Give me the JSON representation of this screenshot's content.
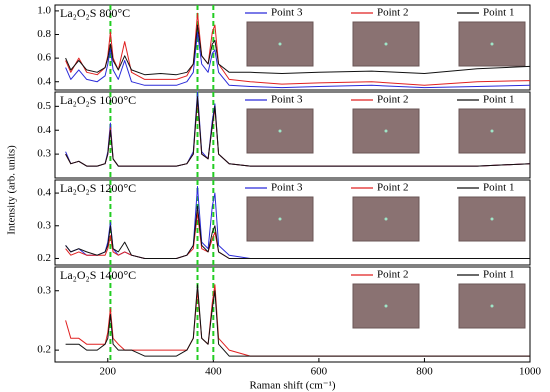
{
  "figure": {
    "y_label": "Intensity (arb. units)",
    "peak_lines": [
      205,
      370,
      400
    ],
    "peak_line_color": "#22cc22"
  },
  "chart_data": [
    {
      "type": "line",
      "label": "La₂O₂S 800°C",
      "xlim": [
        100,
        1000
      ],
      "ylim": [
        0.33,
        1.05
      ],
      "yticks": [
        0.4,
        0.6,
        0.8,
        {
          "value": 1,
          "label": "1.0"
        }
      ],
      "x": [
        120,
        130,
        145,
        160,
        180,
        195,
        200,
        205,
        210,
        220,
        232,
        245,
        270,
        300,
        330,
        350,
        362,
        370,
        378,
        390,
        398,
        403,
        410,
        430,
        470,
        530,
        600,
        700,
        800,
        900,
        1000
      ],
      "series": [
        {
          "name": "Point 3",
          "color": "#2b2bd9",
          "values": [
            0.52,
            0.42,
            0.5,
            0.42,
            0.4,
            0.45,
            0.55,
            0.68,
            0.5,
            0.42,
            0.58,
            0.4,
            0.37,
            0.37,
            0.37,
            0.4,
            0.48,
            0.82,
            0.55,
            0.48,
            0.64,
            0.67,
            0.48,
            0.37,
            0.36,
            0.35,
            0.36,
            0.37,
            0.35,
            0.36,
            0.37
          ]
        },
        {
          "name": "Point 2",
          "color": "#e02020",
          "values": [
            0.58,
            0.48,
            0.6,
            0.48,
            0.46,
            0.52,
            0.62,
            0.82,
            0.6,
            0.5,
            0.74,
            0.48,
            0.42,
            0.42,
            0.42,
            0.45,
            0.55,
            0.98,
            0.62,
            0.55,
            0.82,
            0.88,
            0.55,
            0.42,
            0.4,
            0.38,
            0.39,
            0.4,
            0.37,
            0.4,
            0.41
          ]
        },
        {
          "name": "Point 1",
          "color": "#111111",
          "values": [
            0.6,
            0.5,
            0.58,
            0.5,
            0.48,
            0.52,
            0.6,
            0.72,
            0.58,
            0.5,
            0.62,
            0.5,
            0.46,
            0.47,
            0.46,
            0.48,
            0.55,
            0.88,
            0.62,
            0.55,
            0.72,
            0.75,
            0.55,
            0.48,
            0.48,
            0.47,
            0.48,
            0.49,
            0.47,
            0.51,
            0.53
          ]
        }
      ]
    },
    {
      "type": "line",
      "label": "La₂O₂S 1000°C",
      "xlim": [
        100,
        1000
      ],
      "ylim": [
        0.2,
        0.56
      ],
      "yticks": [
        0.3,
        0.4,
        0.5
      ],
      "x": [
        120,
        130,
        145,
        160,
        180,
        195,
        200,
        205,
        210,
        220,
        232,
        245,
        270,
        300,
        330,
        350,
        362,
        370,
        378,
        390,
        398,
        403,
        410,
        430,
        470,
        530,
        600,
        700,
        800,
        900,
        1000
      ],
      "series": [
        {
          "name": "Point 3",
          "color": "#2b2bd9",
          "values": [
            0.31,
            0.26,
            0.27,
            0.25,
            0.25,
            0.26,
            0.31,
            0.43,
            0.28,
            0.25,
            0.25,
            0.25,
            0.25,
            0.25,
            0.25,
            0.26,
            0.31,
            0.56,
            0.31,
            0.28,
            0.44,
            0.51,
            0.3,
            0.26,
            0.25,
            0.25,
            0.25,
            0.25,
            0.25,
            0.25,
            0.26
          ]
        },
        {
          "name": "Point 2",
          "color": "#e02020",
          "values": [
            0.3,
            0.26,
            0.27,
            0.25,
            0.25,
            0.26,
            0.3,
            0.41,
            0.28,
            0.25,
            0.25,
            0.25,
            0.25,
            0.25,
            0.25,
            0.26,
            0.3,
            0.53,
            0.3,
            0.28,
            0.42,
            0.49,
            0.3,
            0.26,
            0.25,
            0.25,
            0.25,
            0.25,
            0.25,
            0.25,
            0.26
          ]
        },
        {
          "name": "Point 1",
          "color": "#111111",
          "values": [
            0.3,
            0.26,
            0.27,
            0.25,
            0.25,
            0.26,
            0.3,
            0.4,
            0.28,
            0.25,
            0.25,
            0.25,
            0.25,
            0.25,
            0.25,
            0.26,
            0.3,
            0.54,
            0.3,
            0.28,
            0.42,
            0.5,
            0.3,
            0.26,
            0.25,
            0.25,
            0.25,
            0.25,
            0.25,
            0.25,
            0.26
          ]
        }
      ]
    },
    {
      "type": "line",
      "label": "La₂O₂S 1200°C",
      "xlim": [
        100,
        1000
      ],
      "ylim": [
        0.18,
        0.44
      ],
      "yticks": [
        0.2,
        0.3,
        0.4
      ],
      "x": [
        120,
        130,
        145,
        160,
        180,
        195,
        200,
        205,
        210,
        220,
        232,
        245,
        270,
        300,
        330,
        350,
        362,
        370,
        378,
        390,
        398,
        403,
        410,
        430,
        470,
        530,
        600,
        700,
        800,
        900,
        1000
      ],
      "series": [
        {
          "name": "Point 3",
          "color": "#2b2bd9",
          "values": [
            0.24,
            0.22,
            0.23,
            0.21,
            0.21,
            0.22,
            0.25,
            0.31,
            0.23,
            0.21,
            0.22,
            0.21,
            0.2,
            0.2,
            0.2,
            0.21,
            0.24,
            0.42,
            0.25,
            0.23,
            0.36,
            0.4,
            0.24,
            0.21,
            0.2,
            0.2,
            0.2,
            0.2,
            0.2,
            0.2,
            0.2
          ]
        },
        {
          "name": "Point 2",
          "color": "#e02020",
          "values": [
            0.23,
            0.21,
            0.22,
            0.21,
            0.21,
            0.21,
            0.23,
            0.27,
            0.22,
            0.21,
            0.22,
            0.21,
            0.2,
            0.2,
            0.2,
            0.21,
            0.23,
            0.34,
            0.23,
            0.22,
            0.26,
            0.28,
            0.22,
            0.2,
            0.2,
            0.2,
            0.2,
            0.2,
            0.2,
            0.2,
            0.2
          ]
        },
        {
          "name": "Point 1",
          "color": "#111111",
          "values": [
            0.24,
            0.22,
            0.23,
            0.22,
            0.21,
            0.22,
            0.24,
            0.3,
            0.23,
            0.22,
            0.25,
            0.21,
            0.2,
            0.2,
            0.2,
            0.21,
            0.24,
            0.36,
            0.24,
            0.22,
            0.28,
            0.3,
            0.22,
            0.2,
            0.2,
            0.2,
            0.2,
            0.2,
            0.2,
            0.2,
            0.2
          ]
        }
      ]
    },
    {
      "type": "line",
      "label": "La₂O₂S 1400°C",
      "xlim": [
        100,
        1000
      ],
      "ylim": [
        0.18,
        0.34
      ],
      "yticks": [
        0.2,
        0.3
      ],
      "xticks": [
        200,
        400,
        600,
        800,
        1000
      ],
      "x_label": "Raman shift (cm⁻¹)",
      "x": [
        120,
        130,
        145,
        160,
        180,
        195,
        200,
        205,
        210,
        220,
        232,
        245,
        270,
        300,
        330,
        350,
        362,
        370,
        378,
        390,
        398,
        403,
        410,
        430,
        470,
        530,
        600,
        700,
        800,
        900,
        1000
      ],
      "series": [
        {
          "name": "Point 2",
          "color": "#e02020",
          "values": [
            0.25,
            0.22,
            0.22,
            0.21,
            0.21,
            0.21,
            0.23,
            0.27,
            0.22,
            0.21,
            0.2,
            0.2,
            0.2,
            0.2,
            0.2,
            0.2,
            0.22,
            0.3,
            0.22,
            0.21,
            0.28,
            0.31,
            0.22,
            0.2,
            0.19,
            0.19,
            0.19,
            0.19,
            0.19,
            0.19,
            0.19
          ]
        },
        {
          "name": "Point 1",
          "color": "#111111",
          "values": [
            0.21,
            0.21,
            0.21,
            0.2,
            0.2,
            0.21,
            0.22,
            0.26,
            0.21,
            0.2,
            0.2,
            0.2,
            0.19,
            0.19,
            0.19,
            0.2,
            0.22,
            0.31,
            0.22,
            0.21,
            0.27,
            0.3,
            0.21,
            0.19,
            0.19,
            0.19,
            0.19,
            0.19,
            0.19,
            0.19,
            0.19
          ]
        }
      ]
    }
  ]
}
